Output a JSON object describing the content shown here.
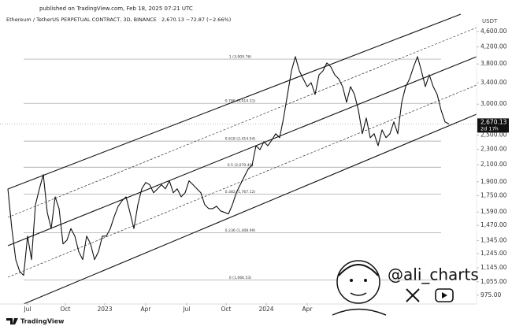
{
  "header": {
    "published": "published on TradingView.com, Feb 18, 2025 07:21 UTC",
    "symbol": "Ethereum / TetherUS PERPETUAL CONTRACT, 3D, BINANCE",
    "last": "2,670.13",
    "change": "−72.87 (−2.66%)"
  },
  "chart_data": {
    "type": "line",
    "y_unit": "USDT",
    "color": "#111111",
    "log_scale": true,
    "values": [
      1823,
      1443,
      1202,
      1121,
      1096,
      1380,
      1202,
      1660,
      1823,
      1982,
      1587,
      1443,
      1739,
      1622,
      1318,
      1348,
      1443,
      1380,
      1259,
      1202,
      1380,
      1318,
      1202,
      1259,
      1380,
      1380,
      1443,
      1549,
      1645,
      1700,
      1739,
      1587,
      1443,
      1660,
      1823,
      1892,
      1868,
      1781,
      1823,
      1868,
      1823,
      1911,
      1781,
      1823,
      1739,
      1781,
      1911,
      1868,
      1823,
      1781,
      1660,
      1622,
      1622,
      1645,
      1601,
      1587,
      1573,
      1660,
      1781,
      1868,
      1956,
      2046,
      2094,
      2349,
      2295,
      2404,
      2349,
      2428,
      2521,
      2463,
      2765,
      3176,
      3649,
      3967,
      3649,
      3482,
      3325,
      3403,
      3176,
      3565,
      3649,
      3823,
      3735,
      3565,
      3482,
      3325,
      3033,
      3325,
      3176,
      2895,
      2521,
      2765,
      2463,
      2521,
      2349,
      2579,
      2463,
      2521,
      2702,
      2521,
      3033,
      3325,
      3482,
      3735,
      3967,
      3649,
      3325,
      3565,
      3325,
      3176,
      2895,
      2702,
      2670.13
    ],
    "xlim": [
      -2,
      119
    ],
    "xticks": [
      {
        "value": 5,
        "label": "Jul"
      },
      {
        "value": 14.6,
        "label": "Oct"
      },
      {
        "value": 24.6,
        "label": "2023"
      },
      {
        "value": 35,
        "label": "Apr"
      },
      {
        "value": 45.4,
        "label": "Jul"
      },
      {
        "value": 55.4,
        "label": "Oct"
      },
      {
        "value": 65.6,
        "label": "2024"
      },
      {
        "value": 76,
        "label": "Apr"
      }
    ],
    "ylim": [
      930,
      5100
    ],
    "yticks": [
      {
        "value": 4600,
        "label": "4,600.00"
      },
      {
        "value": 4200,
        "label": "4,200.00"
      },
      {
        "value": 3800,
        "label": "3,800.00"
      },
      {
        "value": 3400,
        "label": "3,400.00"
      },
      {
        "value": 3000,
        "label": "3,000.00"
      },
      {
        "value": 2500,
        "label": "2,500.00"
      },
      {
        "value": 2300,
        "label": "2,300.00"
      },
      {
        "value": 2100,
        "label": "2,100.00"
      },
      {
        "value": 1900,
        "label": "1,900.00"
      },
      {
        "value": 1750,
        "label": "1,750.00"
      },
      {
        "value": 1590,
        "label": "1,590.00"
      },
      {
        "value": 1470,
        "label": "1,470.00"
      },
      {
        "value": 1345,
        "label": "1,345.00"
      },
      {
        "value": 1245,
        "label": "1,245.00"
      },
      {
        "value": 1145,
        "label": "1,145.00"
      },
      {
        "value": 1055,
        "label": "1,055.00"
      },
      {
        "value": 975,
        "label": "975.00"
      }
    ],
    "last_price": {
      "value": 2670.13,
      "label": "2,670.13"
    },
    "countdown": "2d 17h",
    "levels": [
      {
        "value": 3909.76,
        "label": "1 (3,909.76)"
      },
      {
        "value": 3014.31,
        "label": "0.786 (3,014.31)"
      },
      {
        "value": 2414.04,
        "label": "0.618 (2,414.04)"
      },
      {
        "value": 2070.4,
        "label": "0.5 (2,070.40)"
      },
      {
        "value": 1767.12,
        "label": "0.382 (1,767.12)"
      },
      {
        "value": 1408.99,
        "label": "0.236 (1,408.99)"
      },
      {
        "value": 1066.53,
        "label": "0 (1,066.53)"
      }
    ]
  },
  "watermark": {
    "handle": "@ali_charts"
  },
  "footer": {
    "brand": "TradingView"
  }
}
